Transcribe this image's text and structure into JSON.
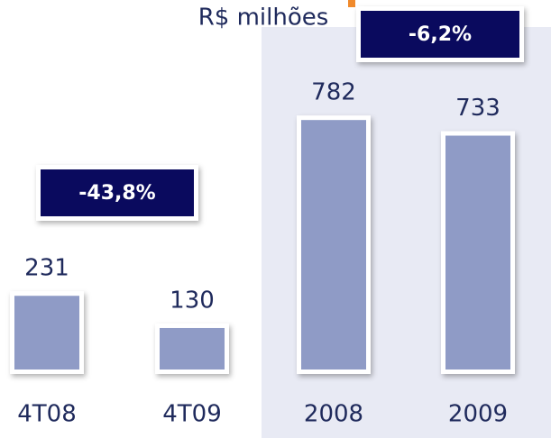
{
  "chart_data": {
    "type": "bar",
    "title": "R$ milhões",
    "categories": [
      "4T08",
      "4T09",
      "2008",
      "2009"
    ],
    "values": [
      231,
      130,
      782,
      733
    ],
    "color": "#8f9bc6",
    "annotations": [
      "-43,8%",
      "-6,2%"
    ]
  }
}
